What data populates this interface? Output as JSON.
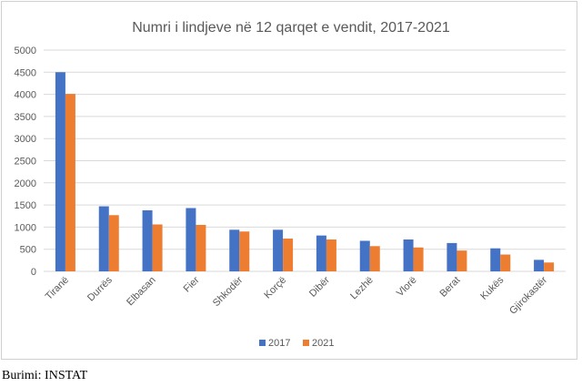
{
  "chart_data": {
    "type": "bar",
    "title": "Numri i lindjeve në 12 qarqet e vendit, 2017-2021",
    "xlabel": "",
    "ylabel": "",
    "ylim": [
      0,
      5000
    ],
    "yticks": [
      "0",
      "500",
      "1000",
      "1500",
      "2000",
      "2500",
      "3000",
      "3500",
      "4000",
      "4500",
      "5000"
    ],
    "grid": true,
    "legend_position": "bottom",
    "categories": [
      "Tiranë",
      "Durrës",
      "Elbasan",
      "Fier",
      "Shkodër",
      "Korçë",
      "Dibër",
      "Lezhë",
      "Vlorë",
      "Berat",
      "Kukës",
      "Gjirokastër"
    ],
    "series": [
      {
        "name": "2017",
        "color": "#4472C4",
        "values": [
          4500,
          1470,
          1380,
          1430,
          940,
          940,
          810,
          690,
          720,
          640,
          520,
          260
        ]
      },
      {
        "name": "2021",
        "color": "#ED7D31",
        "values": [
          4010,
          1270,
          1060,
          1050,
          900,
          740,
          720,
          570,
          540,
          470,
          380,
          200
        ]
      }
    ]
  },
  "source": "Burimi: INSTAT"
}
